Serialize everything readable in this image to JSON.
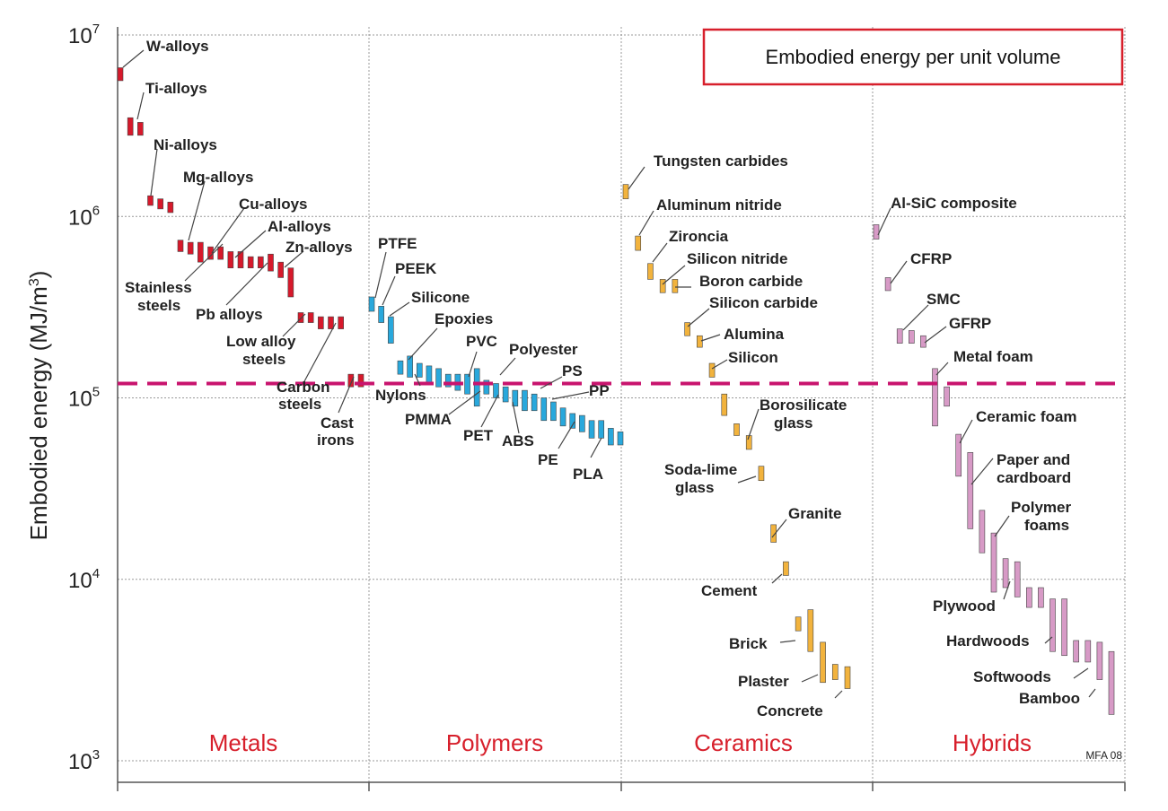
{
  "chart_data": {
    "type": "range-bar",
    "title": "Embodied energy per unit volume",
    "ylabel_prefix": "Embodied energy (MJ/m",
    "ylabel_sup": "3",
    "ylabel_suffix": ")",
    "yscale": "log",
    "ylim": [
      1000,
      10000000
    ],
    "yticks": [
      {
        "base": "10",
        "exp": "3",
        "value": 1000
      },
      {
        "base": "10",
        "exp": "4",
        "value": 10000
      },
      {
        "base": "10",
        "exp": "5",
        "value": 100000
      },
      {
        "base": "10",
        "exp": "6",
        "value": 1000000
      },
      {
        "base": "10",
        "exp": "7",
        "value": 10000000
      }
    ],
    "reference_line": {
      "value": 120000,
      "style": "dashed",
      "color": "#c8146e"
    },
    "credit": "MFA 08",
    "legend_position": "top-right",
    "colors": {
      "metals": "#d7192b",
      "polymers": "#29a8dc",
      "ceramics": "#f2b33d",
      "hybrids": "#d79ac6",
      "family_label": "#d71f2b",
      "title_border": "#d71f2b",
      "grid": "#999999",
      "bar_border": "#444444"
    },
    "families": [
      {
        "name": "Metals",
        "color_key": "metals",
        "bars": [
          {
            "lo": 5600000.0,
            "hi": 6600000.0
          },
          {
            "lo": 2800000.0,
            "hi": 3500000.0
          },
          {
            "lo": 2800000.0,
            "hi": 3300000.0
          },
          {
            "lo": 1150000.0,
            "hi": 1300000.0
          },
          {
            "lo": 1100000.0,
            "hi": 1250000.0
          },
          {
            "lo": 1050000.0,
            "hi": 1200000.0
          },
          {
            "lo": 640000.0,
            "hi": 740000.0
          },
          {
            "lo": 620000.0,
            "hi": 720000.0
          },
          {
            "lo": 560000.0,
            "hi": 720000.0
          },
          {
            "lo": 580000.0,
            "hi": 680000.0
          },
          {
            "lo": 580000.0,
            "hi": 680000.0
          },
          {
            "lo": 520000.0,
            "hi": 640000.0
          },
          {
            "lo": 520000.0,
            "hi": 640000.0
          },
          {
            "lo": 520000.0,
            "hi": 600000.0
          },
          {
            "lo": 520000.0,
            "hi": 600000.0
          },
          {
            "lo": 500000.0,
            "hi": 620000.0
          },
          {
            "lo": 460000.0,
            "hi": 560000.0
          },
          {
            "lo": 360000.0,
            "hi": 520000.0
          },
          {
            "lo": 260000.0,
            "hi": 295000.0
          },
          {
            "lo": 260000.0,
            "hi": 295000.0
          },
          {
            "lo": 240000.0,
            "hi": 280000.0
          },
          {
            "lo": 240000.0,
            "hi": 280000.0
          },
          {
            "lo": 240000.0,
            "hi": 280000.0
          },
          {
            "lo": 115000.0,
            "hi": 135000.0
          },
          {
            "lo": 115000.0,
            "hi": 135000.0
          }
        ]
      },
      {
        "name": "Polymers",
        "color_key": "polymers",
        "bars": [
          {
            "lo": 300000.0,
            "hi": 360000.0
          },
          {
            "lo": 260000.0,
            "hi": 320000.0
          },
          {
            "lo": 200000.0,
            "hi": 280000.0
          },
          {
            "lo": 135000.0,
            "hi": 160000.0
          },
          {
            "lo": 130000.0,
            "hi": 170000.0
          },
          {
            "lo": 130000.0,
            "hi": 155000.0
          },
          {
            "lo": 120000.0,
            "hi": 150000.0
          },
          {
            "lo": 115000.0,
            "hi": 145000.0
          },
          {
            "lo": 115000.0,
            "hi": 135000.0
          },
          {
            "lo": 110000.0,
            "hi": 135000.0
          },
          {
            "lo": 105000.0,
            "hi": 135000.0
          },
          {
            "lo": 90000.0,
            "hi": 145000.0
          },
          {
            "lo": 105000.0,
            "hi": 125000.0
          },
          {
            "lo": 100000.0,
            "hi": 120000.0
          },
          {
            "lo": 95000.0,
            "hi": 115000.0
          },
          {
            "lo": 90000.0,
            "hi": 110000.0
          },
          {
            "lo": 85000.0,
            "hi": 110000.0
          },
          {
            "lo": 85000.0,
            "hi": 105000.0
          },
          {
            "lo": 75000.0,
            "hi": 100000.0
          },
          {
            "lo": 75000.0,
            "hi": 95000.0
          },
          {
            "lo": 70000.0,
            "hi": 88000.0
          },
          {
            "lo": 68000.0,
            "hi": 82000.0
          },
          {
            "lo": 65000.0,
            "hi": 80000.0
          },
          {
            "lo": 60000.0,
            "hi": 75000.0
          },
          {
            "lo": 60000.0,
            "hi": 75000.0
          },
          {
            "lo": 55000.0,
            "hi": 68000.0
          },
          {
            "lo": 55000.0,
            "hi": 65000.0
          }
        ]
      },
      {
        "name": "Ceramics",
        "color_key": "ceramics",
        "bars": [
          {
            "lo": 1250000.0,
            "hi": 1500000.0
          },
          {
            "lo": 650000.0,
            "hi": 780000.0
          },
          {
            "lo": 450000.0,
            "hi": 550000.0
          },
          {
            "lo": 380000.0,
            "hi": 450000.0
          },
          {
            "lo": 380000.0,
            "hi": 450000.0
          },
          {
            "lo": 220000.0,
            "hi": 260000.0
          },
          {
            "lo": 190000.0,
            "hi": 220000.0
          },
          {
            "lo": 130000.0,
            "hi": 155000.0
          },
          {
            "lo": 80000.0,
            "hi": 105000.0
          },
          {
            "lo": 62000.0,
            "hi": 72000.0
          },
          {
            "lo": 52000.0,
            "hi": 62000.0
          },
          {
            "lo": 35000.0,
            "hi": 42000.0
          },
          {
            "lo": 16000.0,
            "hi": 20000.0
          },
          {
            "lo": 10500.0,
            "hi": 12500.0
          },
          {
            "lo": 5200.0,
            "hi": 6200.0
          },
          {
            "lo": 4000.0,
            "hi": 6800.0
          },
          {
            "lo": 2700.0,
            "hi": 4500.0
          },
          {
            "lo": 2800.0,
            "hi": 3400.0
          },
          {
            "lo": 2500.0,
            "hi": 3300.0
          }
        ]
      },
      {
        "name": "Hybrids",
        "color_key": "hybrids",
        "bars": [
          {
            "lo": 750000.0,
            "hi": 900000.0
          },
          {
            "lo": 390000.0,
            "hi": 460000.0
          },
          {
            "lo": 200000.0,
            "hi": 240000.0
          },
          {
            "lo": 200000.0,
            "hi": 235000.0
          },
          {
            "lo": 190000.0,
            "hi": 220000.0
          },
          {
            "lo": 70000.0,
            "hi": 145000.0
          },
          {
            "lo": 90000.0,
            "hi": 115000.0
          },
          {
            "lo": 37000.0,
            "hi": 63000.0
          },
          {
            "lo": 19000.0,
            "hi": 50000.0
          },
          {
            "lo": 14000.0,
            "hi": 24000.0
          },
          {
            "lo": 8500.0,
            "hi": 18000.0
          },
          {
            "lo": 9000.0,
            "hi": 13000.0
          },
          {
            "lo": 8000.0,
            "hi": 12500.0
          },
          {
            "lo": 7000.0,
            "hi": 9000.0
          },
          {
            "lo": 7000.0,
            "hi": 9000.0
          },
          {
            "lo": 4000.0,
            "hi": 7800.0
          },
          {
            "lo": 3800.0,
            "hi": 7800.0
          },
          {
            "lo": 3500.0,
            "hi": 4600.0
          },
          {
            "lo": 3500.0,
            "hi": 4600.0
          },
          {
            "lo": 2800.0,
            "hi": 4500.0
          },
          {
            "lo": 1800.0,
            "hi": 4000.0
          }
        ]
      }
    ],
    "annotations": [
      "W-alloys",
      "Ti-alloys",
      "Ni-alloys",
      "Mg-alloys",
      "Cu-alloys",
      "Al-alloys",
      "Zn-alloys",
      "Stainless",
      "steels",
      "Pb alloys",
      "Low alloy",
      "steels",
      "Carbon",
      "steels",
      "Cast",
      "irons",
      "PTFE",
      "PEEK",
      "Silicone",
      "Epoxies",
      "PVC",
      "Polyester",
      "PS",
      "PP",
      "Nylons",
      "PMMA",
      "PET",
      "ABS",
      "PE",
      "PLA",
      "Tungsten carbides",
      "Aluminum nitride",
      "Zironcia",
      "Silicon nitride",
      "Boron carbide",
      "Silicon carbide",
      "Alumina",
      "Silicon",
      "Borosilicate",
      "glass",
      "Soda-lime",
      "glass",
      "Granite",
      "Cement",
      "Brick",
      "Plaster",
      "Concrete",
      "Al-SiC composite",
      "CFRP",
      "SMC",
      "GFRP",
      "Metal foam",
      "Ceramic foam",
      "Paper and",
      "cardboard",
      "Polymer",
      "foams",
      "Plywood",
      "Hardwoods",
      "Softwoods",
      "Bamboo"
    ]
  }
}
